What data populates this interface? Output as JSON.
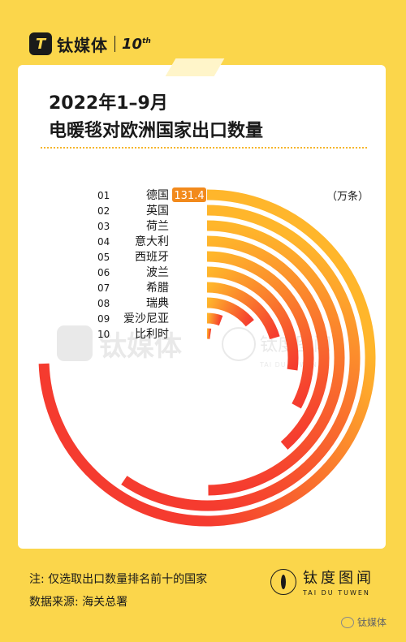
{
  "header": {
    "logo_glyph": "T",
    "brand": "钛媒体",
    "tenth": "10",
    "tenth_suffix": "th"
  },
  "title": {
    "line1": "2022年1–9月",
    "line2": "电暖毯对欧洲国家出口数量"
  },
  "chart_data": {
    "type": "radial-bar",
    "unit": "（万条）",
    "categories": [
      {
        "rank": "01",
        "name": "德国"
      },
      {
        "rank": "02",
        "name": "英国"
      },
      {
        "rank": "03",
        "name": "荷兰"
      },
      {
        "rank": "04",
        "name": "意大利"
      },
      {
        "rank": "05",
        "name": "西班牙"
      },
      {
        "rank": "06",
        "name": "波兰"
      },
      {
        "rank": "07",
        "name": "希腊"
      },
      {
        "rank": "08",
        "name": "瑞典"
      },
      {
        "rank": "09",
        "name": "爱沙尼亚"
      },
      {
        "rank": "10",
        "name": "比利时"
      }
    ],
    "values": [
      131.4,
      105,
      88,
      68,
      58,
      48,
      36,
      25,
      10,
      4
    ],
    "labeled_value": "131.4",
    "colors": {
      "start": "#ffb62b",
      "end": "#f53b2f",
      "label_bg": "#f28a1c"
    }
  },
  "watermark": {
    "brand": "钛媒体",
    "cn": "钛度图闻",
    "en": "TAI DU TUWEN"
  },
  "footer": {
    "note": "注: 仅选取出口数量排名前十的国家",
    "source": "数据来源: 海关总署",
    "brand_cn": "钛度图闻",
    "brand_en": "TAI DU TUWEN",
    "wechat": "钛媒体"
  }
}
